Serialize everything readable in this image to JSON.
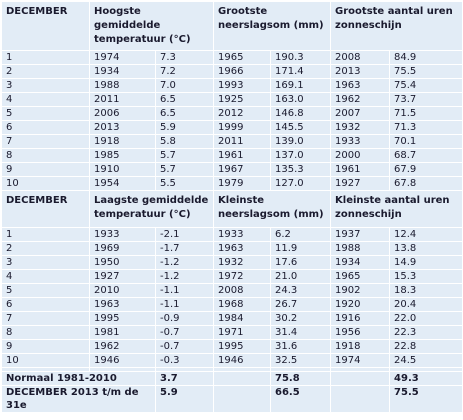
{
  "tables": [
    {
      "header": [
        "DECEMBER",
        "Hoogste gemiddelde temperatuur (°C)",
        "Grootste neerslagsom (mm)",
        "Grootste aantal uren zonneschijn"
      ],
      "rows": [
        [
          "1",
          "1974",
          "7.3",
          "1965",
          "190.3",
          "2008",
          "84.9"
        ],
        [
          "2",
          "1934",
          "7.2",
          "1966",
          "171.4",
          "2013",
          "75.5"
        ],
        [
          "3",
          "1988",
          "7.0",
          "1993",
          "169.1",
          "1963",
          "75.4"
        ],
        [
          "4",
          "2011",
          "6.5",
          "1925",
          "163.0",
          "1962",
          "73.7"
        ],
        [
          "5",
          "2006",
          "6.5",
          "2012",
          "146.8",
          "2007",
          "71.5"
        ],
        [
          "6",
          "2013",
          "5.9",
          "1999",
          "145.5",
          "1932",
          "71.3"
        ],
        [
          "7",
          "1918",
          "5.8",
          "2011",
          "139.0",
          "1933",
          "70.1"
        ],
        [
          "8",
          "1985",
          "5.7",
          "1961",
          "137.0",
          "2000",
          "68.7"
        ],
        [
          "9",
          "1910",
          "5.7",
          "1967",
          "135.3",
          "1961",
          "67.9"
        ],
        [
          "10",
          "1954",
          "5.5",
          "1979",
          "127.0",
          "1927",
          "67.8"
        ]
      ]
    },
    {
      "header": [
        "DECEMBER",
        "Laagste gemiddelde temperatuur (°C)",
        "Kleinste neerslagsom (mm)",
        "Kleinste aantal uren zonneschijn"
      ],
      "rows": [
        [
          "1",
          "1933",
          "-2.1",
          "1933",
          "6.2",
          "1937",
          "12.4"
        ],
        [
          "2",
          "1969",
          "-1.7",
          "1963",
          "11.9",
          "1988",
          "13.8"
        ],
        [
          "3",
          "1950",
          "-1.2",
          "1932",
          "17.6",
          "1934",
          "14.9"
        ],
        [
          "4",
          "1927",
          "-1.2",
          "1972",
          "21.0",
          "1965",
          "15.3"
        ],
        [
          "5",
          "2010",
          "-1.1",
          "2008",
          "24.3",
          "1902",
          "18.3"
        ],
        [
          "6",
          "1963",
          "-1.1",
          "1968",
          "26.7",
          "1920",
          "20.4"
        ],
        [
          "7",
          "1995",
          "-0.9",
          "1984",
          "30.2",
          "1916",
          "22.0"
        ],
        [
          "8",
          "1981",
          "-0.7",
          "1971",
          "31.4",
          "1956",
          "22.3"
        ],
        [
          "9",
          "1962",
          "-0.7",
          "1995",
          "31.6",
          "1918",
          "22.8"
        ],
        [
          "10",
          "1946",
          "-0.3",
          "1946",
          "32.5",
          "1974",
          "24.5"
        ]
      ]
    }
  ],
  "footer": [
    {
      "label": "Normaal 1981-2010",
      "values": [
        "3.7",
        "75.8",
        "49.3"
      ]
    },
    {
      "label": "DECEMBER 2013 t/m de 31e",
      "values": [
        "5.9",
        "66.5",
        "75.5"
      ]
    }
  ]
}
